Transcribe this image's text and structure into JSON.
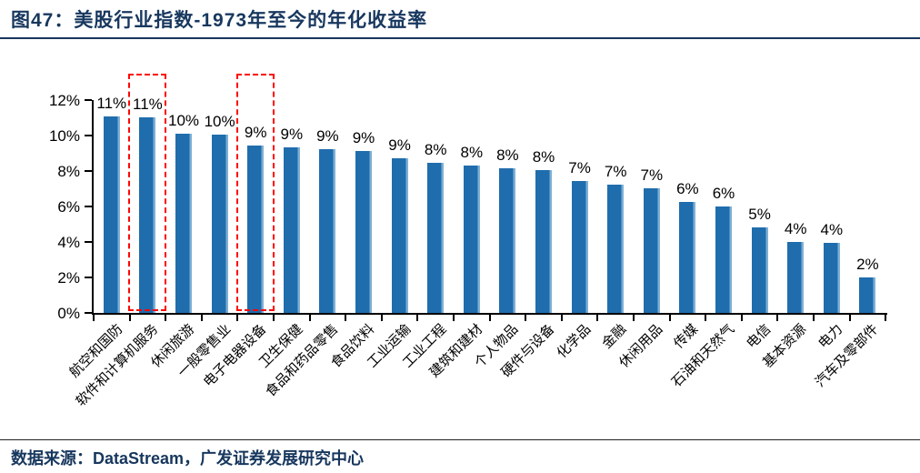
{
  "page": {
    "title": "图47：美股行业指数-1973年至今的年化收益率",
    "source": "数据来源：DataStream，广发证券发展研究中心"
  },
  "colors": {
    "title_text": "#17375E",
    "bar": "#1F6DAD",
    "bar_light_edge": "#7FB0D5",
    "highlight_dashed": "#FE0606",
    "axis": "#000000",
    "label_text": "#000000"
  },
  "chart_data": {
    "type": "bar",
    "title": "美股行业指数-1973年至今的年化收益率",
    "xlabel": "",
    "ylabel": "",
    "ylim": [
      0,
      12
    ],
    "grid": false,
    "legend": null,
    "yticks": {
      "values": [
        0,
        2,
        4,
        6,
        8,
        10,
        12
      ],
      "labels": [
        "0%",
        "2%",
        "4%",
        "6%",
        "8%",
        "10%",
        "12%"
      ]
    },
    "categories": [
      "航空和国防",
      "软件和计算机服务",
      "休闲旅游",
      "一般零售业",
      "电子电器设备",
      "卫生保健",
      "食品和药品零售",
      "食品饮料",
      "工业运输",
      "工业工程",
      "建筑和建材",
      "个人物品",
      "硬件与设备",
      "化学品",
      "金融",
      "休闲用品",
      "传媒",
      "石油和天然气",
      "电信",
      "基本资源",
      "电力",
      "汽车及零部件"
    ],
    "values": [
      11.1,
      11.05,
      10.1,
      10.05,
      9.45,
      9.35,
      9.25,
      9.15,
      8.7,
      8.45,
      8.3,
      8.15,
      8.05,
      7.45,
      7.25,
      7.05,
      6.25,
      6.0,
      4.8,
      4.0,
      3.95,
      2.0
    ],
    "data_labels": [
      "11%",
      "11%",
      "10%",
      "10%",
      "9%",
      "9%",
      "9%",
      "9%",
      "9%",
      "8%",
      "8%",
      "8%",
      "8%",
      "7%",
      "7%",
      "7%",
      "6%",
      "6%",
      "5%",
      "4%",
      "4%",
      "2%"
    ],
    "highlighted_categories": [
      "软件和计算机服务",
      "电子电器设备"
    ],
    "highlighted_indexes": [
      1,
      4
    ]
  }
}
